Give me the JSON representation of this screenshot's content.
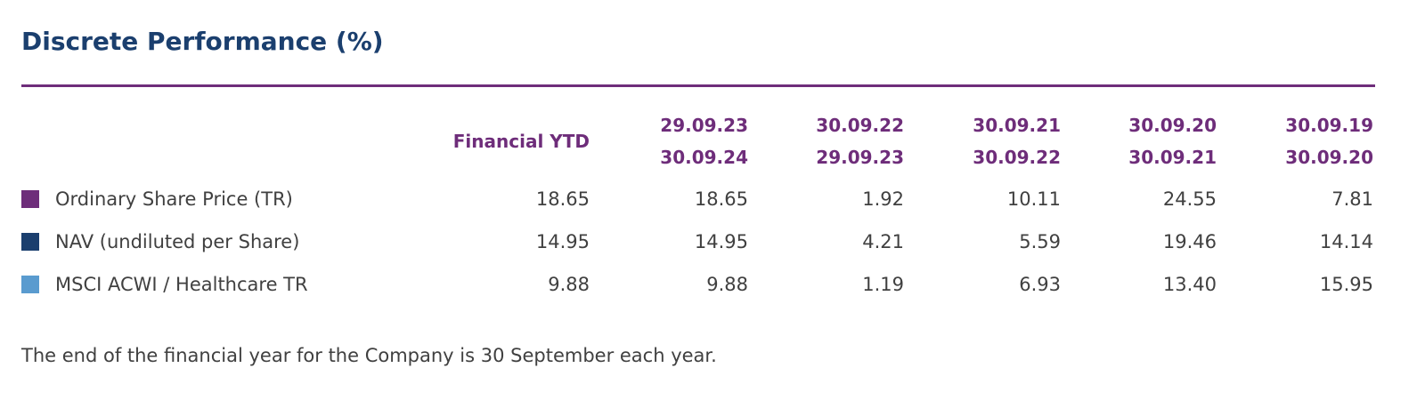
{
  "title": "Discrete Performance (%)",
  "colors": {
    "title": "#1b3f6e",
    "accent": "#6e2d7a",
    "text": "#404040"
  },
  "table": {
    "headers": [
      {
        "lines": [
          "Financial YTD"
        ]
      },
      {
        "lines": [
          "29.09.23",
          "30.09.24"
        ]
      },
      {
        "lines": [
          "30.09.22",
          "29.09.23"
        ]
      },
      {
        "lines": [
          "30.09.21",
          "30.09.22"
        ]
      },
      {
        "lines": [
          "30.09.20",
          "30.09.21"
        ]
      },
      {
        "lines": [
          "30.09.19",
          "30.09.20"
        ]
      }
    ],
    "rows": [
      {
        "label": "Ordinary Share Price (TR)",
        "swatch": "#6e2d7a",
        "values": [
          "18.65",
          "18.65",
          "1.92",
          "10.11",
          "24.55",
          "7.81"
        ]
      },
      {
        "label": "NAV (undiluted per Share)",
        "swatch": "#1b3f6e",
        "values": [
          "14.95",
          "14.95",
          "4.21",
          "5.59",
          "19.46",
          "14.14"
        ]
      },
      {
        "label": "MSCI ACWI / Healthcare TR",
        "swatch": "#5a9bcf",
        "values": [
          "9.88",
          "9.88",
          "1.19",
          "6.93",
          "13.40",
          "15.95"
        ]
      }
    ]
  },
  "footnote": "The end of the financial year for the Company is 30 September each year."
}
